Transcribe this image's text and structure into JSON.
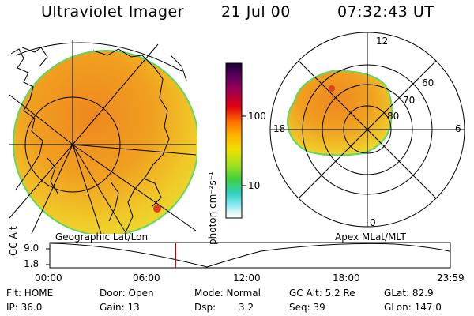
{
  "header": {
    "instrument": "Ultraviolet Imager",
    "date": "21 Jul 00",
    "time": "07:32:43 UT"
  },
  "colors": {
    "aurora_outer": "#e8e030",
    "aurora_mid": "#f0b020",
    "aurora_core": "#ee8820",
    "aurora_hot": "#dd4020",
    "edge_green": "#60d860",
    "cursor_red": "#d00000"
  },
  "colorbar": {
    "label": "photon cm⁻²s⁻¹",
    "ticks": [
      "100",
      "10"
    ],
    "colors_top_to_bottom": [
      "#1a0030",
      "#5a0060",
      "#a00050",
      "#e00010",
      "#ff7000",
      "#ffb000",
      "#f0e000",
      "#a0e020",
      "#40d040",
      "#30d0c0",
      "#80e8f0",
      "#d8f4f8",
      "#ffffff"
    ]
  },
  "geo_panel": {
    "label": "Geographic Lat/Lon"
  },
  "apex_panel": {
    "label": "Apex MLat/MLT",
    "mlt_labels": [
      "12",
      "18",
      "6",
      "0"
    ],
    "lat_labels": [
      "60",
      "70",
      "80"
    ]
  },
  "timeline": {
    "ylabel": "GC Alt",
    "y_ticks": [
      "9.0",
      "1.8"
    ],
    "x_ticks": [
      "00:00",
      "06:00",
      "12:00",
      "18:00",
      "23:59"
    ],
    "cursor_hour": 7.55
  },
  "status": {
    "flt": "Flt: HOME",
    "ip": "IP: 36.0",
    "door": "Door: Open",
    "gain": "Gain: 13",
    "mode": "Mode: Normal",
    "dsp_label": "Dsp:",
    "dsp_value": "3.2",
    "gcalt": "GC Alt: 5.2 Re",
    "seq": "Seq: 39",
    "glat": "GLat: 82.9",
    "glon": "GLon: 147.0"
  }
}
